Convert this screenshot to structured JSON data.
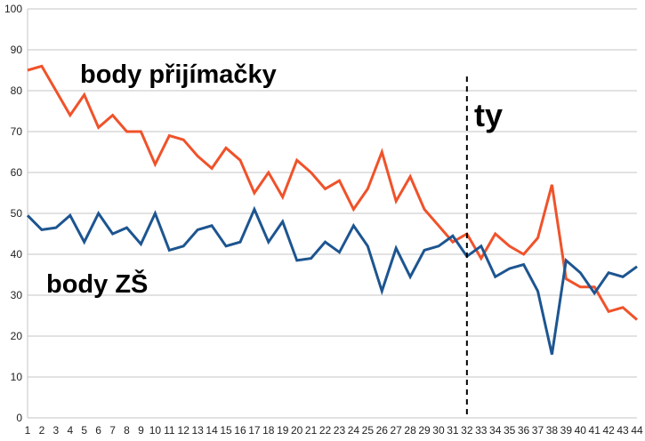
{
  "chart_data": {
    "type": "line",
    "title": "",
    "xlabel": "",
    "ylabel": "",
    "x": [
      1,
      2,
      3,
      4,
      5,
      6,
      7,
      8,
      9,
      10,
      11,
      12,
      13,
      14,
      15,
      16,
      17,
      18,
      19,
      20,
      21,
      22,
      23,
      24,
      25,
      26,
      27,
      28,
      29,
      30,
      31,
      32,
      33,
      34,
      35,
      36,
      37,
      38,
      39,
      40,
      41,
      42,
      43,
      44
    ],
    "ylim": [
      0,
      100
    ],
    "yticks": [
      0,
      10,
      20,
      30,
      40,
      50,
      60,
      70,
      80,
      90,
      100
    ],
    "grid": true,
    "series": [
      {
        "name": "body přijímačky",
        "color": "#f0522a",
        "values": [
          85,
          86,
          80,
          74,
          79,
          71,
          74,
          70,
          70,
          62,
          69,
          68,
          64,
          61,
          66,
          63,
          55,
          60,
          54,
          63,
          60,
          56,
          58,
          51,
          56,
          65,
          53,
          59,
          51,
          47,
          43,
          45,
          39,
          45,
          42,
          40,
          44,
          57,
          34,
          32,
          32,
          26,
          27,
          24
        ]
      },
      {
        "name": "body ZŠ",
        "color": "#1d5590",
        "values": [
          49.5,
          46,
          46.5,
          49.5,
          43,
          50,
          45,
          46.5,
          42.5,
          50,
          41,
          42,
          46,
          47,
          42,
          43,
          51,
          43,
          48,
          38.5,
          39,
          43,
          40.5,
          47,
          42,
          31,
          41.5,
          34.5,
          41,
          42,
          44.5,
          39.5,
          42,
          34.5,
          36.5,
          37.5,
          31,
          15.5,
          38.5,
          35.5,
          30.5,
          35.5,
          34.5,
          37
        ]
      }
    ],
    "annotations": [
      {
        "text": "body přijímačky",
        "target": "series-1"
      },
      {
        "text": "body ZŠ",
        "target": "series-2"
      },
      {
        "text": "ty",
        "type": "vertical-dashed-line",
        "x": 32
      }
    ]
  }
}
